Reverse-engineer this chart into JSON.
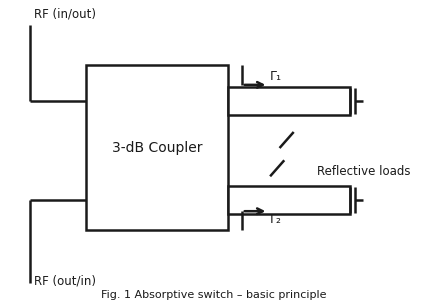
{
  "bg_color": "#ffffff",
  "line_color": "#1a1a1a",
  "title": "Fig. 1 Absorptive switch – basic principle",
  "coupler_label": "3-dB Coupler",
  "label_rf_top": "RF (in/out)",
  "label_rf_bot": "RF (out/in)",
  "label_gamma1": "Γ₁",
  "label_gamma2": "Γ₂",
  "label_reflective": "Reflective loads",
  "lw": 1.8
}
